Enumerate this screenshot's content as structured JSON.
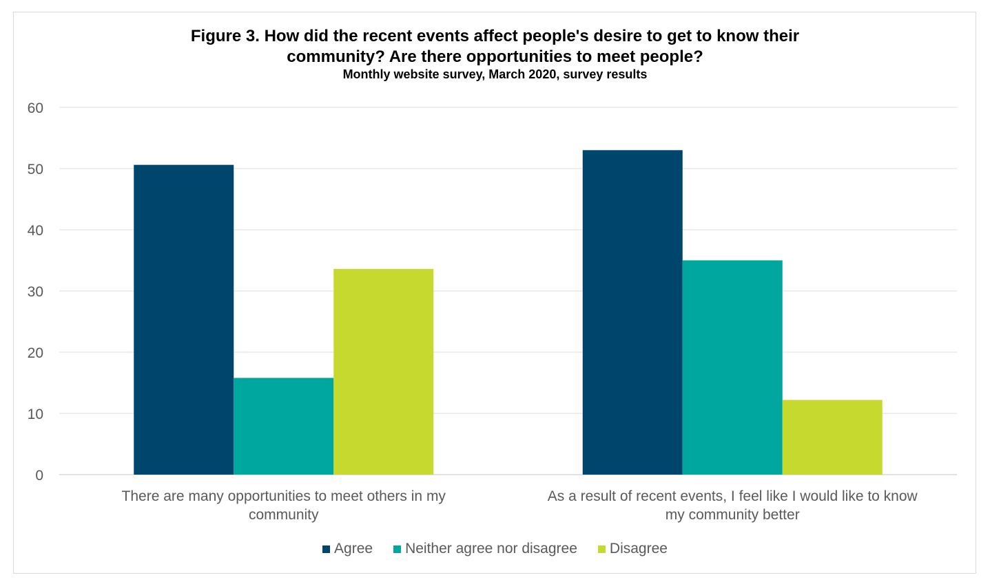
{
  "chart_data": {
    "type": "bar",
    "title_lines": [
      "Figure 3. How did the recent events affect people's desire to get to know their",
      "community? Are there opportunities to meet people?"
    ],
    "subtitle": "Monthly website survey, March 2020, survey results",
    "categories": [
      [
        "There are many opportunities to meet others in my",
        "community"
      ],
      [
        "As a result of recent events, I feel like I would like to know",
        "my community better"
      ]
    ],
    "series": [
      {
        "name": "Agree",
        "color": "#00456b",
        "values": [
          50.6,
          53.0
        ]
      },
      {
        "name": "Neither agree nor disagree",
        "color": "#00a79e",
        "values": [
          15.8,
          35.0
        ]
      },
      {
        "name": "Disagree",
        "color": "#c6d92f",
        "values": [
          33.6,
          12.2
        ]
      }
    ],
    "ylim": [
      0,
      60
    ],
    "yticks": [
      "0",
      "10",
      "20",
      "30",
      "40",
      "50",
      "60"
    ],
    "grid": true,
    "legend_position": "bottom"
  }
}
